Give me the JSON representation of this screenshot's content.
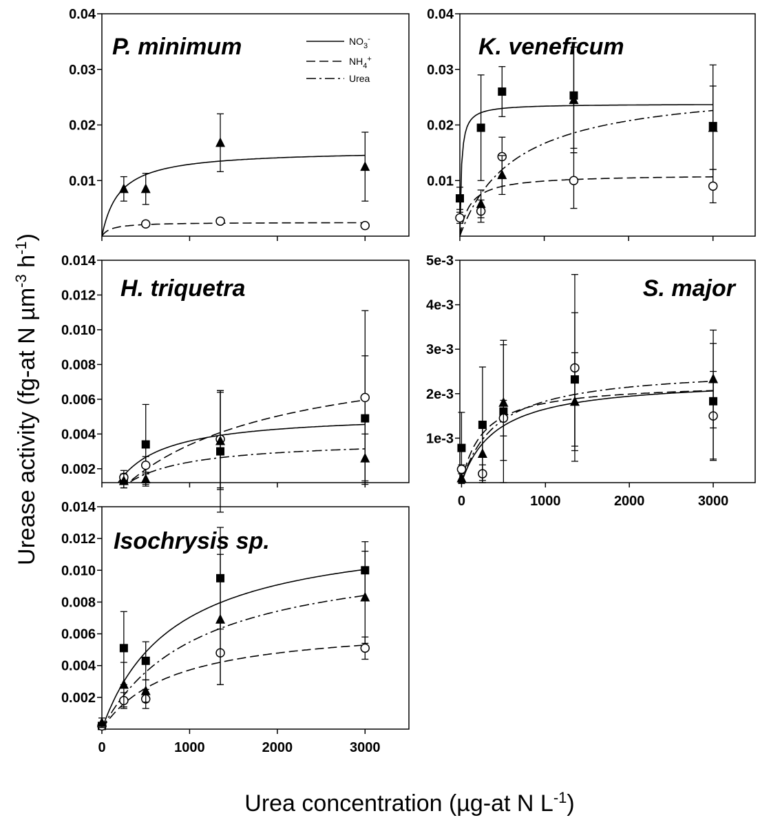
{
  "figure": {
    "ylabel": "Urease activity (fg-at N µm",
    "ylabel_sup1": "-3",
    "ylabel_mid": " h",
    "ylabel_sup2": "-1",
    "ylabel_end": ")",
    "xlabel": "Urea concentration (µg-at N L",
    "xlabel_sup": "-1",
    "xlabel_end": ")"
  },
  "legend": {
    "entries": [
      {
        "label": "NO3",
        "sub": "3",
        "sup": "-",
        "style": "solid"
      },
      {
        "label": "NH4",
        "sub": "4",
        "sup": "+",
        "style": "dashed"
      },
      {
        "label": "Urea",
        "style": "dashdot"
      }
    ]
  },
  "chart_data": [
    {
      "type": "scatter",
      "title": "P. minimum",
      "ylim": [
        0,
        0.04
      ],
      "yticks": [
        "0.01",
        "0.02",
        "0.03",
        "0.04"
      ],
      "ytick_values": [
        0.01,
        0.02,
        0.03,
        0.04
      ],
      "xlim": [
        0,
        3500
      ],
      "xticks": [
        0,
        1000,
        2000,
        3000
      ],
      "show_xtick_labels": false,
      "series": [
        {
          "treatment": "Urea",
          "marker": "triangle",
          "line": "solid",
          "x": [
            250,
            500,
            1350,
            3000
          ],
          "y": [
            0.0085,
            0.0085,
            0.0168,
            0.0125
          ],
          "err": [
            0.0022,
            0.0028,
            0.0052,
            0.0062
          ],
          "curve": {
            "vmax": 0.0155,
            "km": 200,
            "x0": 0
          }
        },
        {
          "treatment": "NH4+",
          "marker": "circle",
          "line": "dashed",
          "x": [
            500,
            1350,
            3000
          ],
          "y": [
            0.0022,
            0.0027,
            0.0019
          ],
          "err": [
            0.0005,
            0.0004,
            0.0004
          ],
          "curve": {
            "vmax": 0.0025,
            "km": 100,
            "x0": 0
          }
        }
      ]
    },
    {
      "type": "scatter",
      "title": "K. veneficum",
      "ylim": [
        0,
        0.04
      ],
      "yticks": [
        "0.01",
        "0.02",
        "0.03",
        "0.04"
      ],
      "ytick_values": [
        0.01,
        0.02,
        0.03,
        0.04
      ],
      "xlim": [
        0,
        3500
      ],
      "xticks": [
        0,
        1000,
        2000,
        3000
      ],
      "show_xtick_labels": false,
      "series": [
        {
          "treatment": "NO3-",
          "marker": "square",
          "line": "solid",
          "x": [
            0,
            250,
            500,
            1350,
            3000
          ],
          "y": [
            0.0068,
            0.0195,
            0.026,
            0.0253,
            0.0198
          ],
          "err": [
            0.002,
            0.0095,
            0.0045,
            0.0095,
            0.011
          ],
          "curve": {
            "vmax": 0.0238,
            "km": 18,
            "x0": 0
          }
        },
        {
          "treatment": "NH4+",
          "marker": "circle",
          "line": "dashed",
          "x": [
            0,
            250,
            500,
            1350,
            3000
          ],
          "y": [
            0.0033,
            0.0045,
            0.0143,
            0.01,
            0.009
          ],
          "err": [
            0.001,
            0.002,
            0.0035,
            0.005,
            0.003
          ],
          "curve": {
            "vmax": 0.0111,
            "km": 120,
            "x0": 0
          }
        },
        {
          "treatment": "Urea",
          "marker": "triangle",
          "line": "dashdot",
          "x": [
            250,
            500,
            1350,
            3000
          ],
          "y": [
            0.0058,
            0.011,
            0.0245,
            0.0195
          ],
          "err": [
            0.0025,
            0.0035,
            0.0095,
            0.0075
          ],
          "curve": {
            "vmax": 0.0275,
            "km": 650,
            "x0": 0
          }
        }
      ]
    },
    {
      "type": "scatter",
      "title": "H. triquetra",
      "ylim": [
        0.0012,
        0.014
      ],
      "yticks": [
        "0.002",
        "0.004",
        "0.006",
        "0.008",
        "0.010",
        "0.012",
        "0.014"
      ],
      "ytick_values": [
        0.002,
        0.004,
        0.006,
        0.008,
        0.01,
        0.012,
        0.014
      ],
      "xlim": [
        0,
        3500
      ],
      "xticks": [
        0,
        1000,
        2000,
        3000
      ],
      "show_xtick_labels": false,
      "series": [
        {
          "treatment": "NO3-",
          "marker": "square",
          "line": "solid",
          "x": [
            250,
            500,
            1350,
            3000
          ],
          "y": [
            0.0013,
            0.0034,
            0.003,
            0.0049
          ],
          "err": [
            0.0004,
            0.0023,
            0.0035,
            0.0036
          ],
          "curve": {
            "vmax": 0.0052,
            "km": 420,
            "x0": 60
          }
        },
        {
          "treatment": "NH4+",
          "marker": "circle",
          "line": "dashed",
          "x": [
            250,
            500,
            1350,
            3000
          ],
          "y": [
            0.0015,
            0.0022,
            0.0037,
            0.0061
          ],
          "err": [
            0.0004,
            0.0005,
            0.0028,
            0.005
          ],
          "curve": {
            "vmax": 0.0093,
            "km": 1650,
            "x0": 60
          }
        },
        {
          "treatment": "Urea",
          "marker": "triangle",
          "line": "dashdot",
          "x": [
            250,
            500,
            1350,
            3000
          ],
          "y": [
            0.0013,
            0.0014,
            0.0036,
            0.0026
          ],
          "err": [
            0.0004,
            0.0004,
            0.0028,
            0.0014
          ],
          "curve": {
            "vmax": 0.0037,
            "km": 520,
            "x0": 60
          }
        }
      ]
    },
    {
      "type": "scatter",
      "title": "S. major",
      "ylim": [
        0,
        0.005
      ],
      "yticks": [
        "1e-3",
        "2e-3",
        "3e-3",
        "4e-3",
        "5e-3"
      ],
      "ytick_values": [
        0.001,
        0.002,
        0.003,
        0.004,
        0.005
      ],
      "xlim": [
        -20,
        3500
      ],
      "xticks": [
        0,
        1000,
        2000,
        3000
      ],
      "xtick_labels": [
        "0",
        "1000",
        "2000",
        "3000"
      ],
      "show_xtick_labels": true,
      "series": [
        {
          "treatment": "NO3-",
          "marker": "square",
          "line": "solid",
          "x": [
            0,
            250,
            500,
            1350,
            3000
          ],
          "y": [
            0.00078,
            0.0013,
            0.0016,
            0.00232,
            0.00183
          ],
          "err": [
            0.0008,
            0.0013,
            0.0016,
            0.0015,
            0.0013
          ],
          "curve": {
            "vmax": 0.00235,
            "km": 420,
            "x0": 0
          }
        },
        {
          "treatment": "NH4+",
          "marker": "circle",
          "line": "dashed",
          "x": [
            0,
            250,
            500,
            1350,
            3000
          ],
          "y": [
            0.0003,
            0.0002,
            0.00145,
            0.00258,
            0.0015
          ],
          "err": [
            0.0001,
            0.0002,
            0.0004,
            0.0021,
            0.001
          ],
          "curve": {
            "vmax": 0.00225,
            "km": 260,
            "x0": 0
          }
        },
        {
          "treatment": "Urea",
          "marker": "triangle",
          "line": "dashdot",
          "x": [
            0,
            250,
            500,
            1350,
            3000
          ],
          "y": [
            0.0001,
            0.00065,
            0.0018,
            0.00182,
            0.00233
          ],
          "err": [
            0.0001,
            0.0006,
            0.0013,
            0.0011,
            0.0011
          ],
          "curve": {
            "vmax": 0.0026,
            "km": 420,
            "x0": 0
          }
        }
      ]
    },
    {
      "type": "scatter",
      "title": "Isochrysis sp.",
      "ylim": [
        0,
        0.014
      ],
      "yticks": [
        "0.002",
        "0.004",
        "0.006",
        "0.008",
        "0.010",
        "0.012",
        "0.014"
      ],
      "ytick_values": [
        0.002,
        0.004,
        0.006,
        0.008,
        0.01,
        0.012,
        0.014
      ],
      "xlim": [
        0,
        3500
      ],
      "xticks": [
        0,
        1000,
        2000,
        3000
      ],
      "xtick_labels": [
        "0",
        "1000",
        "2000",
        "3000"
      ],
      "show_xtick_labels": true,
      "series": [
        {
          "treatment": "NO3-",
          "marker": "square",
          "line": "solid",
          "x": [
            0,
            250,
            500,
            1350,
            3000
          ],
          "y": [
            0.0002,
            0.0051,
            0.0043,
            0.0095,
            0.01
          ],
          "err": [
            0.0002,
            0.0023,
            0.0012,
            0.0032,
            0.0018
          ],
          "curve": {
            "vmax": 0.0128,
            "km": 820,
            "x0": 0
          }
        },
        {
          "treatment": "NH4+",
          "marker": "circle",
          "line": "dashed",
          "x": [
            0,
            250,
            500,
            1350,
            3000
          ],
          "y": [
            0.0002,
            0.0018,
            0.0019,
            0.0048,
            0.0051
          ],
          "err": [
            0.0002,
            0.0005,
            0.0006,
            0.002,
            0.0007
          ],
          "curve": {
            "vmax": 0.0067,
            "km": 800,
            "x0": 0
          }
        },
        {
          "treatment": "Urea",
          "marker": "triangle",
          "line": "dashdot",
          "x": [
            0,
            250,
            500,
            1350,
            3000
          ],
          "y": [
            0.0004,
            0.0028,
            0.0024,
            0.0069,
            0.0083
          ],
          "err": [
            0.0003,
            0.0014,
            0.0007,
            0.0041,
            0.0029
          ],
          "curve": {
            "vmax": 0.0115,
            "km": 1100,
            "x0": 0
          }
        }
      ]
    }
  ]
}
